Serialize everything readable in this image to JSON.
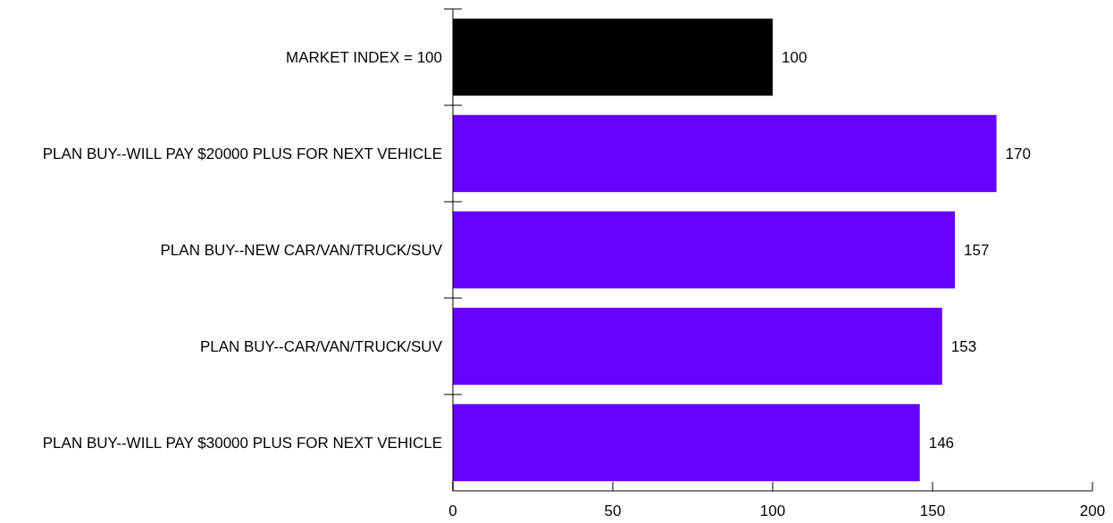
{
  "chart_data": {
    "type": "bar",
    "orientation": "horizontal",
    "categories": [
      "MARKET INDEX = 100",
      "PLAN BUY--WILL PAY $20000 PLUS FOR NEXT VEHICLE",
      "PLAN BUY--NEW CAR/VAN/TRUCK/SUV",
      "PLAN BUY--CAR/VAN/TRUCK/SUV",
      "PLAN BUY--WILL PAY $30000 PLUS FOR NEXT VEHICLE"
    ],
    "values": [
      100,
      170,
      157,
      153,
      146
    ],
    "colors": [
      "#000000",
      "#6600ff",
      "#6600ff",
      "#6600ff",
      "#6600ff"
    ],
    "xlim": [
      0,
      200
    ],
    "xticks": [
      0,
      50,
      100,
      150,
      200
    ],
    "data_labels": true,
    "grid": false
  }
}
